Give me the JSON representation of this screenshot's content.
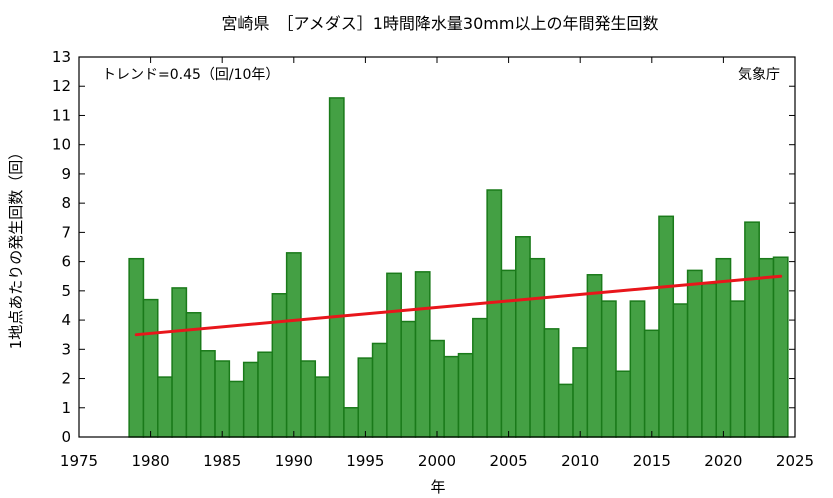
{
  "chart_data": {
    "type": "bar",
    "title": "宮崎県　［アメダス］1時間降水量30mm以上の年間発生回数",
    "xlabel": "年",
    "ylabel": "1地点あたりの発生回数（回）",
    "trend_label": "トレンド=0.45（回/10年）",
    "source_label": "気象庁",
    "xlim": [
      1975,
      2025
    ],
    "ylim": [
      0,
      13
    ],
    "xticks": [
      1975,
      1980,
      1985,
      1990,
      1995,
      2000,
      2005,
      2010,
      2015,
      2020,
      2025
    ],
    "yticks": [
      0,
      1,
      2,
      3,
      4,
      5,
      6,
      7,
      8,
      9,
      10,
      11,
      12,
      13
    ],
    "bar_color": "#44a044",
    "bar_edge_color": "#1a7a1a",
    "trend_color": "#e8161b",
    "x": [
      1979,
      1980,
      1981,
      1982,
      1983,
      1984,
      1985,
      1986,
      1987,
      1988,
      1989,
      1990,
      1991,
      1992,
      1993,
      1994,
      1995,
      1996,
      1997,
      1998,
      1999,
      2000,
      2001,
      2002,
      2003,
      2004,
      2005,
      2006,
      2007,
      2008,
      2009,
      2010,
      2011,
      2012,
      2013,
      2014,
      2015,
      2016,
      2017,
      2018,
      2019,
      2020,
      2021,
      2022,
      2023,
      2024
    ],
    "values": [
      6.1,
      4.7,
      2.05,
      5.1,
      4.25,
      2.95,
      2.6,
      1.9,
      2.55,
      2.9,
      4.9,
      6.3,
      2.6,
      2.05,
      11.6,
      1.0,
      2.7,
      3.2,
      5.6,
      3.95,
      5.65,
      3.3,
      2.75,
      2.85,
      4.05,
      8.45,
      5.7,
      6.85,
      6.1,
      3.7,
      1.8,
      3.05,
      5.55,
      4.65,
      2.25,
      4.65,
      3.65,
      7.55,
      4.55,
      5.7,
      5.25,
      6.1,
      4.65,
      7.35,
      6.1,
      6.15
    ],
    "trend": {
      "x": [
        1979,
        2024
      ],
      "y": [
        3.5,
        5.5
      ]
    },
    "grid": false
  }
}
